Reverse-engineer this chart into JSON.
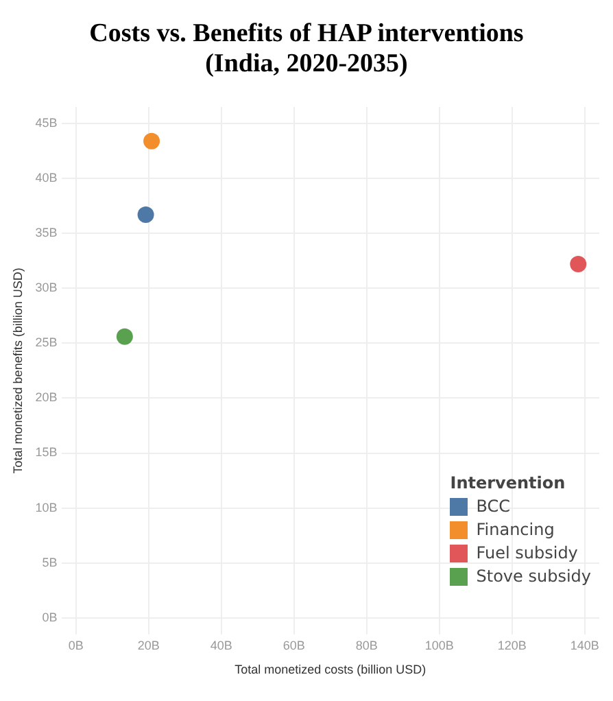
{
  "chart_data": {
    "type": "scatter",
    "title": "Costs vs. Benefits of HAP interventions\n(India, 2020-2035)",
    "xlabel": "Total monetized costs (billion USD)",
    "ylabel": "Total monetized benefits (billion USD)",
    "legend_title": "Intervention",
    "legend": "bottom right",
    "grid": true,
    "marker": "circle",
    "xlim": [
      -4,
      144
    ],
    "ylim": [
      -1.5,
      46.5
    ],
    "xticks": [
      {
        "value": 0,
        "label": "0B"
      },
      {
        "value": 20,
        "label": "20B"
      },
      {
        "value": 40,
        "label": "40B"
      },
      {
        "value": 60,
        "label": "60B"
      },
      {
        "value": 80,
        "label": "80B"
      },
      {
        "value": 100,
        "label": "100B"
      },
      {
        "value": 120,
        "label": "120B"
      },
      {
        "value": 140,
        "label": "140B"
      }
    ],
    "yticks": [
      {
        "value": 0,
        "label": "0B"
      },
      {
        "value": 5,
        "label": "5B"
      },
      {
        "value": 10,
        "label": "10B"
      },
      {
        "value": 15,
        "label": "15B"
      },
      {
        "value": 20,
        "label": "20B"
      },
      {
        "value": 25,
        "label": "25B"
      },
      {
        "value": 30,
        "label": "30B"
      },
      {
        "value": 35,
        "label": "35B"
      },
      {
        "value": 40,
        "label": "40B"
      },
      {
        "value": 45,
        "label": "45B"
      }
    ],
    "series": [
      {
        "name": "BCC",
        "color": "#4e79a7",
        "x": [
          19.2
        ],
        "values": [
          36.7
        ]
      },
      {
        "name": "Financing",
        "color": "#f28e2b",
        "x": [
          20.8
        ],
        "values": [
          43.4
        ]
      },
      {
        "name": "Fuel subsidy",
        "color": "#e15759",
        "x": [
          138.2
        ],
        "values": [
          32.2
        ]
      },
      {
        "name": "Stove subsidy",
        "color": "#59a14f",
        "x": [
          13.4
        ],
        "values": [
          25.6
        ]
      }
    ]
  }
}
